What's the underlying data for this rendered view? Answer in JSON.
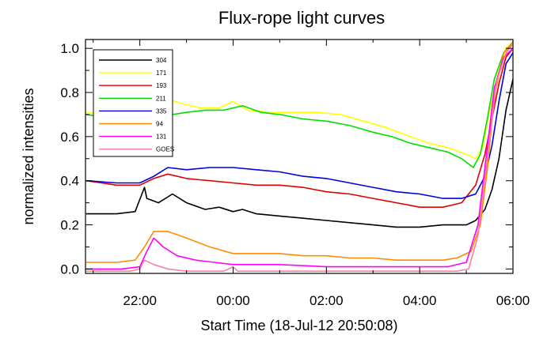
{
  "chart_data": {
    "type": "line",
    "title": "Flux-rope light curves",
    "xlabel": "Start Time (18-Jul-12 20:50:08)",
    "ylabel": "normalized intensities",
    "xlim": [
      -1.165,
      6.0
    ],
    "ylim": [
      -0.02,
      1.04
    ],
    "grid": false,
    "legend_position": "top-left",
    "x_ticks": [
      {
        "value": 22,
        "label": "22:00"
      },
      {
        "value": 24,
        "label": "00:00"
      },
      {
        "value": 26,
        "label": "02:00"
      },
      {
        "value": 28,
        "label": "04:00"
      },
      {
        "value": 30,
        "label": "06:00"
      }
    ],
    "y_ticks": [
      {
        "value": 0.0,
        "label": "0.0"
      },
      {
        "value": 0.2,
        "label": "0.2"
      },
      {
        "value": 0.4,
        "label": "0.4"
      },
      {
        "value": 0.6,
        "label": "0.6"
      },
      {
        "value": 0.8,
        "label": "0.8"
      },
      {
        "value": 1.0,
        "label": "1.0"
      }
    ],
    "series": [
      {
        "name": "304",
        "color": "#000000",
        "points": [
          [
            20.85,
            0.25
          ],
          [
            21.5,
            0.25
          ],
          [
            21.9,
            0.26
          ],
          [
            22.1,
            0.37
          ],
          [
            22.15,
            0.32
          ],
          [
            22.4,
            0.3
          ],
          [
            22.7,
            0.34
          ],
          [
            23.0,
            0.3
          ],
          [
            23.4,
            0.27
          ],
          [
            23.7,
            0.28
          ],
          [
            24.0,
            0.26
          ],
          [
            24.2,
            0.27
          ],
          [
            24.5,
            0.25
          ],
          [
            25.0,
            0.24
          ],
          [
            25.5,
            0.23
          ],
          [
            26.0,
            0.22
          ],
          [
            26.5,
            0.21
          ],
          [
            27.0,
            0.2
          ],
          [
            27.5,
            0.19
          ],
          [
            28.0,
            0.19
          ],
          [
            28.5,
            0.2
          ],
          [
            29.0,
            0.2
          ],
          [
            29.2,
            0.22
          ],
          [
            29.4,
            0.27
          ],
          [
            29.55,
            0.36
          ],
          [
            29.7,
            0.5
          ],
          [
            29.85,
            0.72
          ],
          [
            30.0,
            0.86
          ]
        ]
      },
      {
        "name": "171",
        "color": "#ffff00",
        "points": [
          [
            20.85,
            0.71
          ],
          [
            21.5,
            0.69
          ],
          [
            22.0,
            0.69
          ],
          [
            22.3,
            0.72
          ],
          [
            22.6,
            0.77
          ],
          [
            22.9,
            0.75
          ],
          [
            23.3,
            0.73
          ],
          [
            23.7,
            0.73
          ],
          [
            24.0,
            0.76
          ],
          [
            24.3,
            0.72
          ],
          [
            24.8,
            0.71
          ],
          [
            25.3,
            0.71
          ],
          [
            25.8,
            0.71
          ],
          [
            26.3,
            0.7
          ],
          [
            26.8,
            0.67
          ],
          [
            27.3,
            0.64
          ],
          [
            27.8,
            0.6
          ],
          [
            28.2,
            0.57
          ],
          [
            28.6,
            0.55
          ],
          [
            29.0,
            0.52
          ],
          [
            29.2,
            0.5
          ],
          [
            29.35,
            0.55
          ],
          [
            29.5,
            0.72
          ],
          [
            29.7,
            0.9
          ],
          [
            29.85,
            1.0
          ],
          [
            30.0,
            1.03
          ]
        ]
      },
      {
        "name": "193",
        "color": "#e00000",
        "points": [
          [
            20.85,
            0.4
          ],
          [
            21.5,
            0.38
          ],
          [
            22.0,
            0.38
          ],
          [
            22.3,
            0.41
          ],
          [
            22.6,
            0.43
          ],
          [
            23.0,
            0.41
          ],
          [
            23.5,
            0.4
          ],
          [
            24.0,
            0.39
          ],
          [
            24.5,
            0.38
          ],
          [
            25.0,
            0.38
          ],
          [
            25.5,
            0.37
          ],
          [
            26.0,
            0.35
          ],
          [
            26.5,
            0.34
          ],
          [
            27.0,
            0.32
          ],
          [
            27.5,
            0.3
          ],
          [
            28.0,
            0.28
          ],
          [
            28.5,
            0.28
          ],
          [
            28.9,
            0.3
          ],
          [
            29.2,
            0.38
          ],
          [
            29.4,
            0.52
          ],
          [
            29.55,
            0.68
          ],
          [
            29.7,
            0.84
          ],
          [
            29.85,
            0.96
          ],
          [
            30.0,
            1.0
          ]
        ]
      },
      {
        "name": "211",
        "color": "#00e000",
        "points": [
          [
            20.85,
            0.7
          ],
          [
            21.5,
            0.68
          ],
          [
            22.0,
            0.68
          ],
          [
            22.4,
            0.66
          ],
          [
            22.7,
            0.7
          ],
          [
            23.0,
            0.71
          ],
          [
            23.4,
            0.72
          ],
          [
            23.8,
            0.72
          ],
          [
            24.2,
            0.74
          ],
          [
            24.6,
            0.71
          ],
          [
            25.0,
            0.7
          ],
          [
            25.5,
            0.68
          ],
          [
            26.0,
            0.67
          ],
          [
            26.5,
            0.65
          ],
          [
            27.0,
            0.62
          ],
          [
            27.4,
            0.6
          ],
          [
            27.8,
            0.57
          ],
          [
            28.2,
            0.55
          ],
          [
            28.6,
            0.53
          ],
          [
            28.9,
            0.5
          ],
          [
            29.15,
            0.46
          ],
          [
            29.3,
            0.52
          ],
          [
            29.45,
            0.68
          ],
          [
            29.6,
            0.86
          ],
          [
            29.8,
            0.98
          ],
          [
            30.0,
            1.02
          ]
        ]
      },
      {
        "name": "335",
        "color": "#0000e0",
        "points": [
          [
            20.85,
            0.4
          ],
          [
            21.5,
            0.39
          ],
          [
            22.0,
            0.39
          ],
          [
            22.3,
            0.42
          ],
          [
            22.6,
            0.46
          ],
          [
            23.0,
            0.45
          ],
          [
            23.5,
            0.46
          ],
          [
            24.0,
            0.46
          ],
          [
            24.5,
            0.45
          ],
          [
            25.0,
            0.44
          ],
          [
            25.5,
            0.42
          ],
          [
            26.0,
            0.41
          ],
          [
            26.5,
            0.39
          ],
          [
            27.0,
            0.37
          ],
          [
            27.5,
            0.35
          ],
          [
            28.0,
            0.34
          ],
          [
            28.5,
            0.32
          ],
          [
            28.9,
            0.32
          ],
          [
            29.2,
            0.34
          ],
          [
            29.4,
            0.42
          ],
          [
            29.55,
            0.56
          ],
          [
            29.7,
            0.76
          ],
          [
            29.85,
            0.93
          ],
          [
            30.0,
            0.98
          ]
        ]
      },
      {
        "name": "94",
        "color": "#ff8c00",
        "points": [
          [
            20.85,
            0.03
          ],
          [
            21.5,
            0.03
          ],
          [
            21.9,
            0.04
          ],
          [
            22.1,
            0.1
          ],
          [
            22.3,
            0.17
          ],
          [
            22.6,
            0.17
          ],
          [
            23.0,
            0.14
          ],
          [
            23.5,
            0.1
          ],
          [
            24.0,
            0.07
          ],
          [
            24.5,
            0.07
          ],
          [
            25.0,
            0.07
          ],
          [
            25.5,
            0.06
          ],
          [
            26.0,
            0.06
          ],
          [
            26.5,
            0.05
          ],
          [
            27.0,
            0.05
          ],
          [
            27.5,
            0.04
          ],
          [
            28.0,
            0.04
          ],
          [
            28.5,
            0.04
          ],
          [
            28.8,
            0.05
          ],
          [
            29.1,
            0.08
          ],
          [
            29.3,
            0.2
          ],
          [
            29.45,
            0.45
          ],
          [
            29.6,
            0.78
          ],
          [
            29.8,
            0.98
          ],
          [
            30.0,
            1.03
          ]
        ]
      },
      {
        "name": "131",
        "color": "#ff00ff",
        "points": [
          [
            20.85,
            0.0
          ],
          [
            21.6,
            0.0
          ],
          [
            22.0,
            0.01
          ],
          [
            22.15,
            0.08
          ],
          [
            22.3,
            0.14
          ],
          [
            22.5,
            0.1
          ],
          [
            22.8,
            0.06
          ],
          [
            23.2,
            0.04
          ],
          [
            23.6,
            0.03
          ],
          [
            24.0,
            0.02
          ],
          [
            25.0,
            0.02
          ],
          [
            26.0,
            0.01
          ],
          [
            27.0,
            0.01
          ],
          [
            28.0,
            0.01
          ],
          [
            28.6,
            0.01
          ],
          [
            29.0,
            0.03
          ],
          [
            29.25,
            0.2
          ],
          [
            29.45,
            0.55
          ],
          [
            29.6,
            0.82
          ],
          [
            29.8,
            0.96
          ],
          [
            30.0,
            1.0
          ]
        ]
      },
      {
        "name": "GOES",
        "color": "#ff7fa0",
        "points": [
          [
            20.85,
            -0.01
          ],
          [
            21.8,
            -0.01
          ],
          [
            22.0,
            0.0
          ],
          [
            22.1,
            0.04
          ],
          [
            22.3,
            0.02
          ],
          [
            22.6,
            0.0
          ],
          [
            23.0,
            -0.01
          ],
          [
            23.8,
            -0.01
          ],
          [
            24.0,
            0.01
          ],
          [
            24.1,
            -0.01
          ],
          [
            25.0,
            -0.01
          ],
          [
            26.0,
            -0.01
          ],
          [
            27.0,
            -0.01
          ],
          [
            28.0,
            -0.01
          ],
          [
            28.8,
            -0.01
          ],
          [
            29.05,
            0.0
          ],
          [
            29.25,
            0.15
          ],
          [
            29.45,
            0.5
          ],
          [
            29.65,
            0.85
          ],
          [
            29.85,
            0.98
          ],
          [
            30.0,
            1.02
          ]
        ]
      }
    ]
  }
}
